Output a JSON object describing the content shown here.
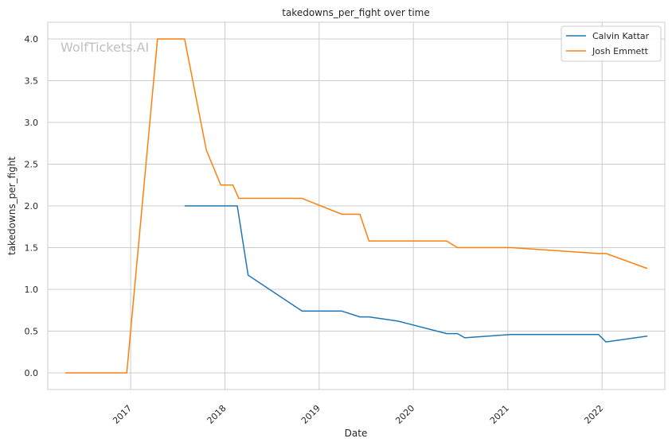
{
  "chart_data": {
    "type": "line",
    "title": "takedowns_per_fight over time",
    "xlabel": "Date",
    "ylabel": "takedowns_per_fight",
    "ylim": [
      -0.2,
      4.2
    ],
    "xlim": [
      "2016-02-15",
      "2022-09-01"
    ],
    "grid": true,
    "legend_placement": "top-right",
    "watermark": "WolfTickets.AI",
    "x_ticks": [
      "2017-01-01",
      "2018-01-01",
      "2019-01-01",
      "2020-01-01",
      "2021-01-01",
      "2022-01-01"
    ],
    "x_tick_labels": [
      "2017",
      "2018",
      "2019",
      "2020",
      "2021",
      "2022"
    ],
    "y_ticks": [
      0.0,
      0.5,
      1.0,
      1.5,
      2.0,
      2.5,
      3.0,
      3.5,
      4.0
    ],
    "y_tick_labels": [
      "0.0",
      "0.5",
      "1.0",
      "1.5",
      "2.0",
      "2.5",
      "3.0",
      "3.5",
      "4.0"
    ],
    "series": [
      {
        "name": "Calvin Kattar",
        "color": "#1f77b4",
        "points": [
          [
            "2017-07-29",
            2.0
          ],
          [
            "2018-02-18",
            2.0
          ],
          [
            "2018-04-01",
            1.17
          ],
          [
            "2018-10-27",
            0.74
          ],
          [
            "2019-03-30",
            0.74
          ],
          [
            "2019-06-08",
            0.67
          ],
          [
            "2019-07-13",
            0.67
          ],
          [
            "2019-11-02",
            0.62
          ],
          [
            "2020-05-09",
            0.47
          ],
          [
            "2020-06-20",
            0.47
          ],
          [
            "2020-07-18",
            0.42
          ],
          [
            "2021-01-16",
            0.46
          ],
          [
            "2021-12-18",
            0.46
          ],
          [
            "2022-01-16",
            0.37
          ],
          [
            "2022-06-25",
            0.44
          ]
        ]
      },
      {
        "name": "Josh Emmett",
        "color": "#ff7f0e",
        "points": [
          [
            "2016-04-23",
            0.0
          ],
          [
            "2016-12-17",
            0.0
          ],
          [
            "2017-04-15",
            4.0
          ],
          [
            "2017-07-29",
            4.0
          ],
          [
            "2017-10-21",
            2.67
          ],
          [
            "2017-12-16",
            2.25
          ],
          [
            "2018-02-01",
            2.25
          ],
          [
            "2018-02-24",
            2.09
          ],
          [
            "2018-10-27",
            2.09
          ],
          [
            "2019-03-30",
            1.9
          ],
          [
            "2019-06-08",
            1.9
          ],
          [
            "2019-07-13",
            1.58
          ],
          [
            "2020-05-09",
            1.58
          ],
          [
            "2020-06-20",
            1.5
          ],
          [
            "2021-01-16",
            1.5
          ],
          [
            "2021-12-18",
            1.43
          ],
          [
            "2022-01-16",
            1.43
          ],
          [
            "2022-06-25",
            1.25
          ]
        ]
      }
    ]
  }
}
